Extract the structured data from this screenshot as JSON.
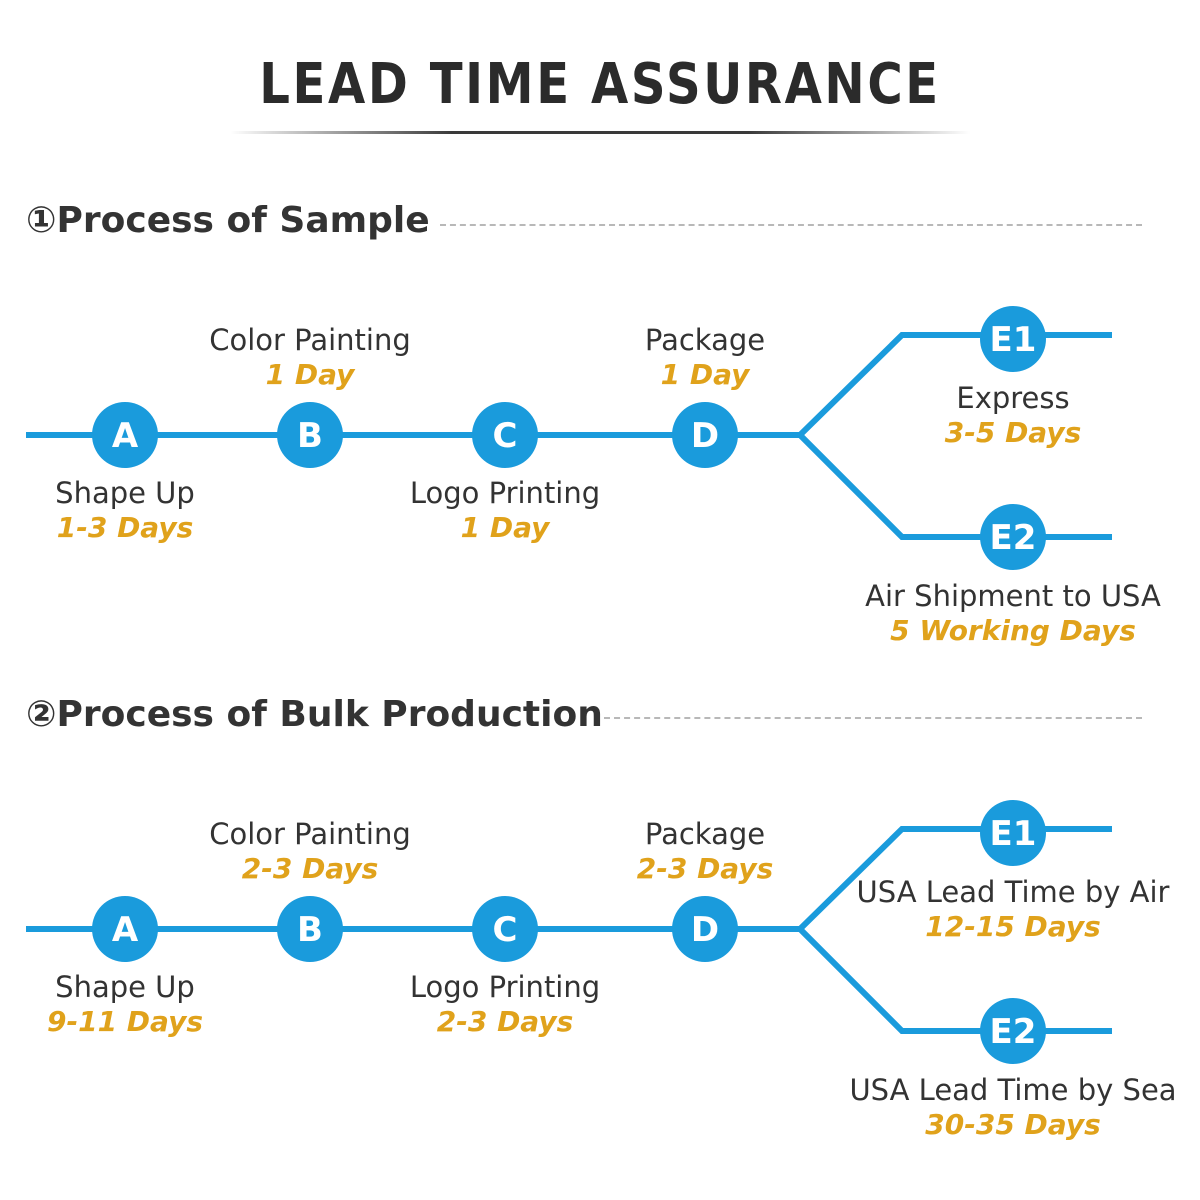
{
  "title": "LEAD TIME ASSURANCE",
  "colors": {
    "line": "#1a9bdc",
    "node": "#1a9bdc",
    "duration": "#e0a21b",
    "text": "#333333"
  },
  "sections": [
    {
      "heading": "①Process of Sample",
      "steps": [
        {
          "letter": "A",
          "label": "Shape Up",
          "duration": "1-3 Days"
        },
        {
          "letter": "B",
          "label": "Color Painting",
          "duration": "1 Day"
        },
        {
          "letter": "C",
          "label": "Logo Printing",
          "duration": "1 Day"
        },
        {
          "letter": "D",
          "label": "Package",
          "duration": "1 Day"
        }
      ],
      "branches": [
        {
          "letter": "E1",
          "label": "Express",
          "duration": "3-5 Days"
        },
        {
          "letter": "E2",
          "label": "Air Shipment to USA",
          "duration": "5 Working Days"
        }
      ]
    },
    {
      "heading": "②Process of Bulk Production",
      "steps": [
        {
          "letter": "A",
          "label": "Shape Up",
          "duration": "9-11 Days"
        },
        {
          "letter": "B",
          "label": "Color Painting",
          "duration": "2-3 Days"
        },
        {
          "letter": "C",
          "label": "Logo Printing",
          "duration": "2-3 Days"
        },
        {
          "letter": "D",
          "label": "Package",
          "duration": "2-3 Days"
        }
      ],
      "branches": [
        {
          "letter": "E1",
          "label": "USA Lead Time by Air",
          "duration": "12-15 Days"
        },
        {
          "letter": "E2",
          "label": "USA Lead Time by Sea",
          "duration": "30-35 Days"
        }
      ]
    }
  ]
}
